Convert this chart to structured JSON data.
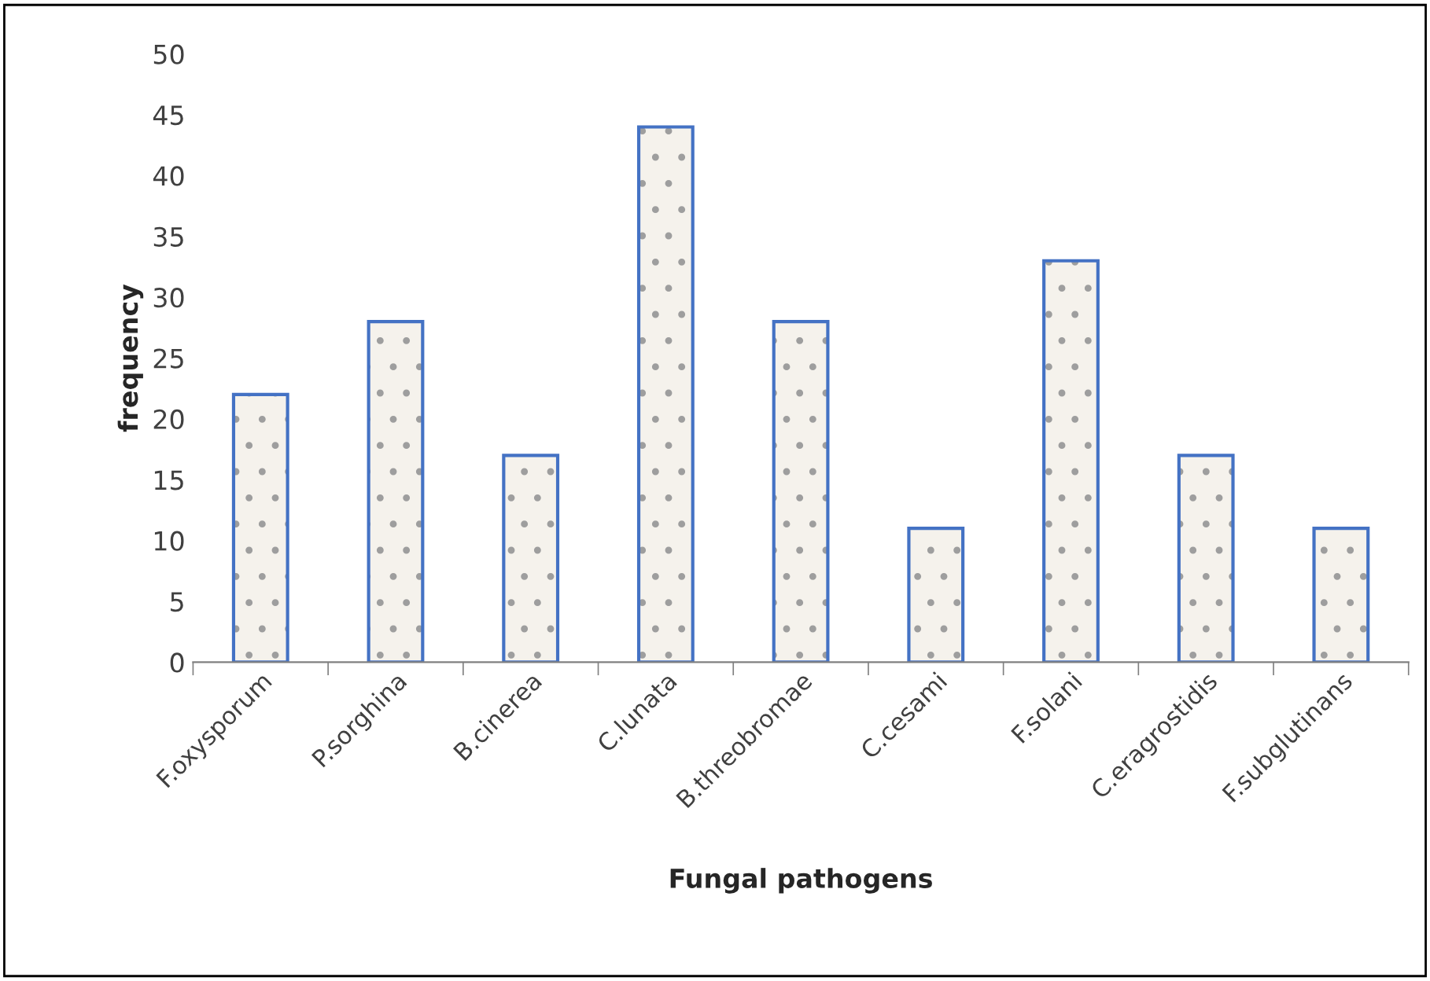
{
  "chart_data": {
    "type": "bar",
    "xlabel": "Fungal pathogens",
    "ylabel": "frequency",
    "categories": [
      "F.oxysporum",
      "P.sorghina",
      "B.cinerea",
      "C.lunata",
      "B.threobromae",
      "C.cesami",
      "F.solani",
      "C.eragrostidis",
      "F.subglutinans"
    ],
    "values": [
      22,
      28,
      17,
      44,
      28,
      11,
      33,
      17,
      11
    ],
    "color": "#4472c4",
    "ylim": [
      0,
      50
    ],
    "yticks": [
      0,
      5,
      10,
      15,
      20,
      25,
      30,
      35,
      40,
      45,
      50
    ],
    "grid": false
  }
}
